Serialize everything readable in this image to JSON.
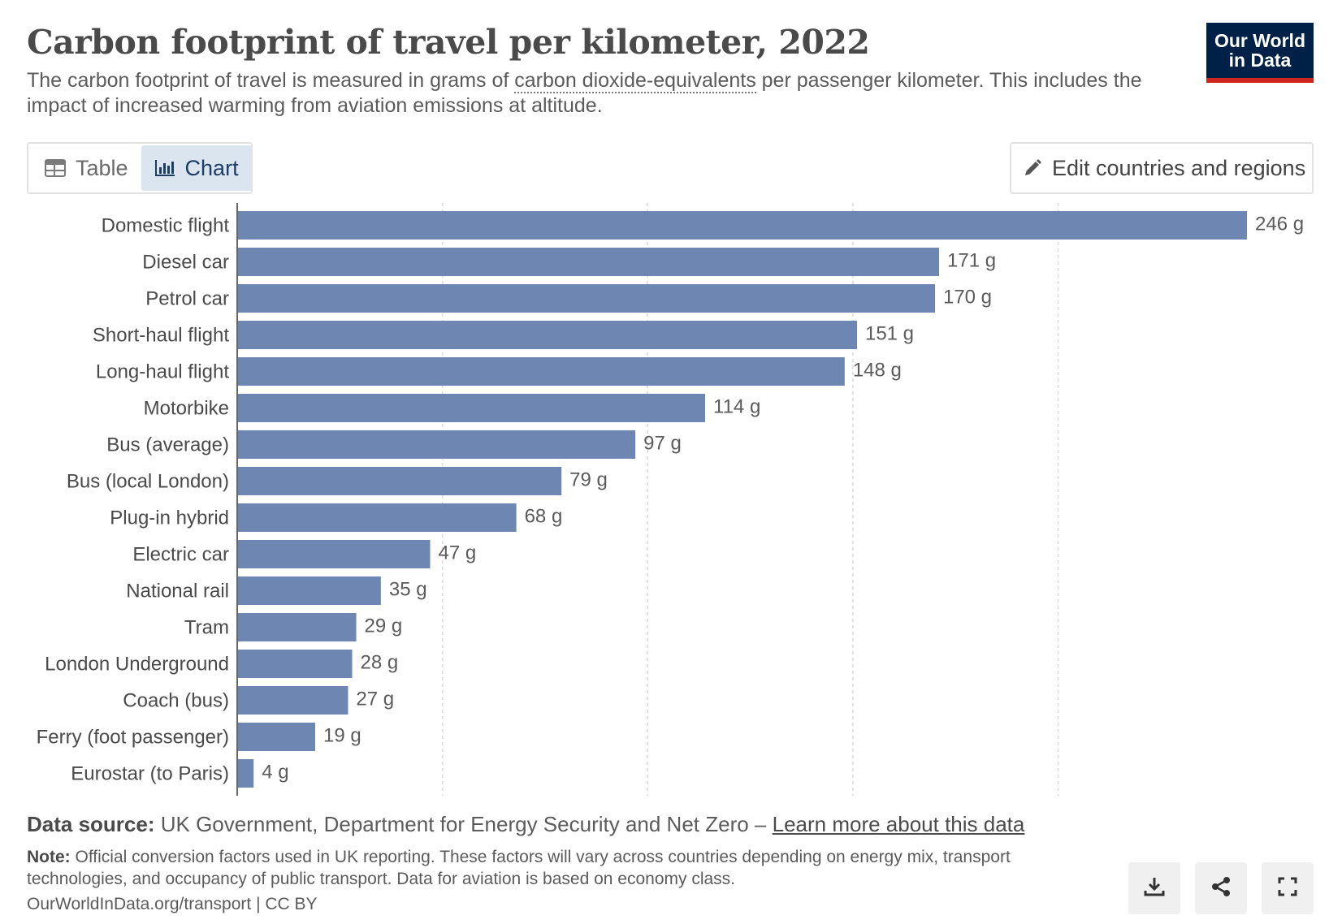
{
  "header": {
    "title": "Carbon footprint of travel per kilometer, 2022",
    "subtitle_before": "The carbon footprint of travel is measured in grams of ",
    "subtitle_link": "carbon dioxide-equivalents",
    "subtitle_after": " per passenger kilometer. This includes the impact of increased warming from aviation emissions at altitude."
  },
  "logo": {
    "line1": "Our World",
    "line2": "in Data"
  },
  "tabs": [
    {
      "label": "Table",
      "icon": "table-icon",
      "active": false
    },
    {
      "label": "Chart",
      "icon": "chart-icon",
      "active": true
    }
  ],
  "edit_button": {
    "label": "Edit countries and regions",
    "icon": "pencil-icon"
  },
  "chart_data": {
    "type": "bar",
    "orientation": "horizontal",
    "categories": [
      "Domestic flight",
      "Diesel car",
      "Petrol car",
      "Short-haul flight",
      "Long-haul flight",
      "Motorbike",
      "Bus (average)",
      "Bus (local London)",
      "Plug-in hybrid",
      "Electric car",
      "National rail",
      "Tram",
      "London Underground",
      "Coach (bus)",
      "Ferry (foot passenger)",
      "Eurostar (to Paris)"
    ],
    "values": [
      246,
      171,
      170,
      151,
      148,
      114,
      97,
      79,
      68,
      47,
      35,
      29,
      28,
      27,
      19,
      4
    ],
    "unit": "g",
    "xlim": [
      0,
      250
    ],
    "gridlines": [
      0,
      50,
      100,
      150,
      200
    ],
    "grid": true,
    "bar_color": "#6d87b2"
  },
  "footer": {
    "source_label": "Data source:",
    "source_text": " UK Government, Department for Energy Security and Net Zero – ",
    "source_link": "Learn more about this data",
    "note_label": "Note:",
    "note_text": " Official conversion factors used in UK reporting. These factors will vary across countries depending on energy mix, transport technologies, and occupancy of public transport. Data for aviation is based on economy class.",
    "credit": "OurWorldInData.org/transport | CC BY"
  },
  "actions": [
    {
      "name": "download-button",
      "icon": "download-icon"
    },
    {
      "name": "share-button",
      "icon": "share-icon"
    },
    {
      "name": "fullscreen-button",
      "icon": "fullscreen-icon"
    }
  ]
}
